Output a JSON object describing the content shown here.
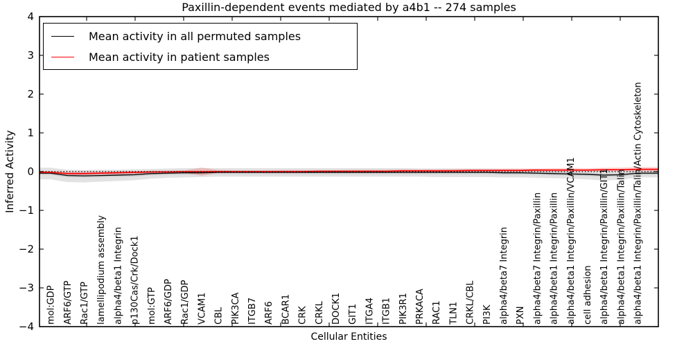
{
  "title": "Paxillin-dependent events mediated by a4b1 -- 274 samples",
  "chart_data": {
    "type": "line",
    "title": "Paxillin-dependent events mediated by a4b1 -- 274 samples",
    "xlabel": "Cellular Entities",
    "ylabel": "Inferred Activity",
    "ylim": [
      -4,
      4
    ],
    "yticks": [
      4,
      3,
      2,
      1,
      0,
      -1,
      -2,
      -3,
      -4
    ],
    "ytick_labels": [
      "4",
      "3",
      "2",
      "1",
      "0",
      "−1",
      "−2",
      "−3",
      "−4"
    ],
    "grid": false,
    "legend_position": "upper left",
    "zero_line": {
      "y": 0,
      "style": "dotted",
      "color": "#000000"
    },
    "categories": [
      "mol:GDP",
      "ARF6/GTP",
      "Rac1/GTP",
      "lamellipodium assembly",
      "alpha4/beta1 Integrin",
      "p130Cas/Crk/Dock1",
      "mol:GTP",
      "ARF6/GDP",
      "Rac1/GDP",
      "VCAM1",
      "CBL",
      "PIK3CA",
      "ITGB7",
      "ARF6",
      "BCAR1",
      "CRK",
      "CRKL",
      "DOCK1",
      "GIT1",
      "ITGA4",
      "ITGB1",
      "PIK3R1",
      "PRKACA",
      "RAC1",
      "TLN1",
      "CRKL/CBL",
      "PI3K",
      "alpha4/beta7 Integrin",
      "PXN",
      "alpha4/beta7 Integrin/Paxillin",
      "alpha4/beta1 Integrin/Paxillin",
      "alpha4/beta1 Integrin/Paxillin/VCAM1",
      "cell adhesion",
      "alpha4/beta1 Integrin/Paxillin/GIT1",
      "alpha4/beta1 Integrin/Paxillin/Talin",
      "alpha4/beta1 Integrin/Paxillin/Talin/Actin Cytoskeleton"
    ],
    "series": [
      {
        "name": "Mean activity in all permuted samples",
        "color": "#000000",
        "band_color": "#bfbfbf",
        "band_opacity": 0.45,
        "inner_band_halfwidth": 0.045,
        "values": [
          -0.04,
          -0.1,
          -0.11,
          -0.1,
          -0.09,
          -0.08,
          -0.05,
          -0.04,
          -0.03,
          -0.03,
          -0.02,
          -0.02,
          -0.02,
          -0.02,
          -0.02,
          -0.02,
          -0.02,
          -0.02,
          -0.02,
          -0.02,
          -0.02,
          -0.02,
          -0.02,
          -0.02,
          -0.02,
          -0.02,
          -0.02,
          -0.03,
          -0.03,
          -0.04,
          -0.05,
          -0.06,
          -0.07,
          -0.09,
          -0.08,
          -0.04
        ],
        "band_upper": [
          0.1,
          0.05,
          0.04,
          0.05,
          0.05,
          0.06,
          0.07,
          0.08,
          0.09,
          0.09,
          0.09,
          0.09,
          0.09,
          0.09,
          0.09,
          0.09,
          0.09,
          0.09,
          0.09,
          0.09,
          0.09,
          0.09,
          0.08,
          0.08,
          0.08,
          0.08,
          0.08,
          0.07,
          0.07,
          0.07,
          0.06,
          0.06,
          0.05,
          0.05,
          0.06,
          0.08
        ],
        "band_lower": [
          -0.2,
          -0.27,
          -0.28,
          -0.26,
          -0.24,
          -0.22,
          -0.18,
          -0.16,
          -0.15,
          -0.14,
          -0.13,
          -0.13,
          -0.13,
          -0.13,
          -0.13,
          -0.13,
          -0.13,
          -0.13,
          -0.13,
          -0.13,
          -0.13,
          -0.13,
          -0.13,
          -0.14,
          -0.14,
          -0.14,
          -0.14,
          -0.15,
          -0.15,
          -0.16,
          -0.17,
          -0.18,
          -0.2,
          -0.23,
          -0.21,
          -0.15
        ]
      },
      {
        "name": "Mean activity in patient samples",
        "color": "#ff0000",
        "band_color": "#ff0000",
        "band_opacity": 0.16,
        "inner_band_halfwidth": 0.02,
        "values": [
          -0.02,
          -0.05,
          -0.05,
          -0.04,
          -0.03,
          -0.02,
          -0.01,
          -0.01,
          0.0,
          0.0,
          0.0,
          0.0,
          0.0,
          0.0,
          0.0,
          0.0,
          0.01,
          0.01,
          0.01,
          0.01,
          0.01,
          0.02,
          0.02,
          0.02,
          0.02,
          0.03,
          0.03,
          0.03,
          0.03,
          0.04,
          0.04,
          0.04,
          0.04,
          0.05,
          0.05,
          0.06
        ],
        "band_upper": [
          0.02,
          0.0,
          0.0,
          0.01,
          0.01,
          0.02,
          0.02,
          0.03,
          0.03,
          0.11,
          0.04,
          0.03,
          0.03,
          0.03,
          0.04,
          0.04,
          0.04,
          0.04,
          0.05,
          0.05,
          0.05,
          0.06,
          0.06,
          0.06,
          0.07,
          0.07,
          0.07,
          0.08,
          0.08,
          0.08,
          0.09,
          0.1,
          0.09,
          0.1,
          0.11,
          0.12
        ],
        "band_lower": [
          -0.06,
          -0.09,
          -0.09,
          -0.08,
          -0.07,
          -0.06,
          -0.05,
          -0.04,
          -0.03,
          -0.11,
          -0.03,
          -0.03,
          -0.02,
          -0.02,
          -0.02,
          -0.02,
          -0.02,
          -0.02,
          -0.01,
          -0.01,
          -0.01,
          -0.01,
          -0.01,
          -0.01,
          0.0,
          0.0,
          0.0,
          0.0,
          0.0,
          0.0,
          0.0,
          0.0,
          0.0,
          0.01,
          0.01,
          0.01
        ]
      }
    ]
  }
}
